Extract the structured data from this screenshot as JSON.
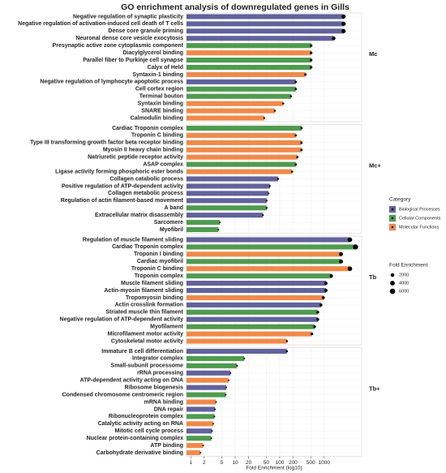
{
  "chart_data": {
    "type": "bar",
    "title": "GO enrichment analysis of downregulated genes in Gills",
    "xlabel": "Fold Enrichment (log10)",
    "log_x": true,
    "grid": true,
    "xlim": [
      0.8,
      7000
    ],
    "xticks": [
      1,
      2,
      5,
      10,
      20,
      50,
      100,
      200,
      500,
      1000
    ],
    "legend_title": "Category",
    "legend_position": "right",
    "legend_categories": [
      {
        "name": "Biological Processes",
        "color": "#62629c"
      },
      {
        "name": "Cellular Components",
        "color": "#4f9b4f"
      },
      {
        "name": "Molecular Functions",
        "color": "#f08a4a"
      }
    ],
    "size_legend_title": "Fold Enrichment",
    "size_legend_values": [
      2000,
      4000,
      6000
    ],
    "panels": [
      {
        "label": "Mc",
        "terms": [
          "Negative regulation of synaptic plasticity",
          "Negative regulation of activation-induced cell death of T cells",
          "Dense core granule priming",
          "Neuronal dense core vesicle exocytosis",
          "Presynaptic active zone cytoplasmic component",
          "Diacylglycerol binding",
          "Parallel fiber to Purkinje cell synapse",
          "Calyx of Held",
          "Syntaxin-1 binding",
          "Negative regulation of lymphocyte apoptotic process",
          "Cell cortex region",
          "Terminal bouton",
          "Syntaxin binding",
          "SNARE binding",
          "Calmodulin binding"
        ],
        "groups": [
          "Biological Processes",
          "Biological Processes",
          "Biological Processes",
          "Biological Processes",
          "Cellular Components",
          "Molecular Functions",
          "Cellular Components",
          "Cellular Components",
          "Molecular Functions",
          "Biological Processes",
          "Cellular Components",
          "Cellular Components",
          "Molecular Functions",
          "Molecular Functions",
          "Molecular Functions"
        ],
        "values": [
          2750,
          2750,
          2750,
          1650,
          510,
          510,
          510,
          510,
          380,
          230,
          230,
          180,
          120,
          78,
          45
        ]
      },
      {
        "label": "Mc+",
        "terms": [
          "Cardiac Troponin complex",
          "Troponin C binding",
          "Type III transforming growth factor beta receptor binding",
          "Myosin II heavy chain binding",
          "Natriuretic peptide receptor activity",
          "ASAP complex",
          "Ligase activity forming phosphoric ester bonds",
          "Collagen catabolic process",
          "Positive regulation of ATP-dependent activity",
          "Collagen metabolic process",
          "Regulation of actin filament-based movement",
          "A band",
          "Extracellular matrix disassembly",
          "Sarcomere",
          "Myofibril"
        ],
        "groups": [
          "Cellular Components",
          "Molecular Functions",
          "Molecular Functions",
          "Molecular Functions",
          "Molecular Functions",
          "Cellular Components",
          "Molecular Functions",
          "Biological Processes",
          "Biological Processes",
          "Biological Processes",
          "Biological Processes",
          "Cellular Components",
          "Biological Processes",
          "Cellular Components",
          "Cellular Components"
        ],
        "values": [
          310,
          230,
          310,
          310,
          250,
          230,
          190,
          92,
          60,
          56,
          51,
          51,
          42,
          4.5,
          4.2
        ]
      },
      {
        "label": "Tb",
        "terms": [
          "Regulation of muscle filament sliding",
          "Cardiac Troponin complex",
          "Troponin I binding",
          "Cardiac myofibril",
          "Troponin C binding",
          "Troponin complex",
          "Muscle filament sliding",
          "Actin-myosin filament sliding",
          "Tropomyosin binding",
          "Actin crosslink formation",
          "Striated muscle thin filament",
          "Negative regulation of ATP-dependent activity",
          "Myofilament",
          "Microfilament motor activity",
          "Cytoskeletal motor activity"
        ],
        "groups": [
          "Biological Processes",
          "Cellular Components",
          "Molecular Functions",
          "Cellular Components",
          "Molecular Functions",
          "Cellular Components",
          "Biological Processes",
          "Biological Processes",
          "Molecular Functions",
          "Biological Processes",
          "Cellular Components",
          "Biological Processes",
          "Cellular Components",
          "Molecular Functions",
          "Molecular Functions"
        ],
        "values": [
          3800,
          5100,
          2400,
          2400,
          3800,
          1450,
          1100,
          1100,
          960,
          850,
          720,
          720,
          610,
          530,
          145
        ]
      },
      {
        "label": "Tb+",
        "terms": [
          "Immature B cell differentiation",
          "Integrator complex",
          "Small-subunit processome",
          "rRNA processing",
          "ATP-dependent activity acting on DNA",
          "Ribosome biogenesis",
          "Condensed chromosome centromeric region",
          "mRNA binding",
          "DNA repair",
          "Ribonucleoprotein complex",
          "Catalytic activity acting on RNA",
          "Mitotic cell cycle process",
          "Nuclear protein-containing complex",
          "ATP binding",
          "Carbohydrate derivative binding"
        ],
        "groups": [
          "Biological Processes",
          "Cellular Components",
          "Cellular Components",
          "Biological Processes",
          "Molecular Functions",
          "Biological Processes",
          "Cellular Components",
          "Molecular Functions",
          "Biological Processes",
          "Cellular Components",
          "Molecular Functions",
          "Biological Processes",
          "Cellular Components",
          "Molecular Functions",
          "Molecular Functions"
        ],
        "values": [
          145,
          16,
          11,
          7.8,
          7.1,
          6.3,
          6.1,
          3.7,
          3.5,
          3.4,
          3.2,
          3.0,
          2.9,
          1.9,
          1.65
        ]
      }
    ]
  }
}
